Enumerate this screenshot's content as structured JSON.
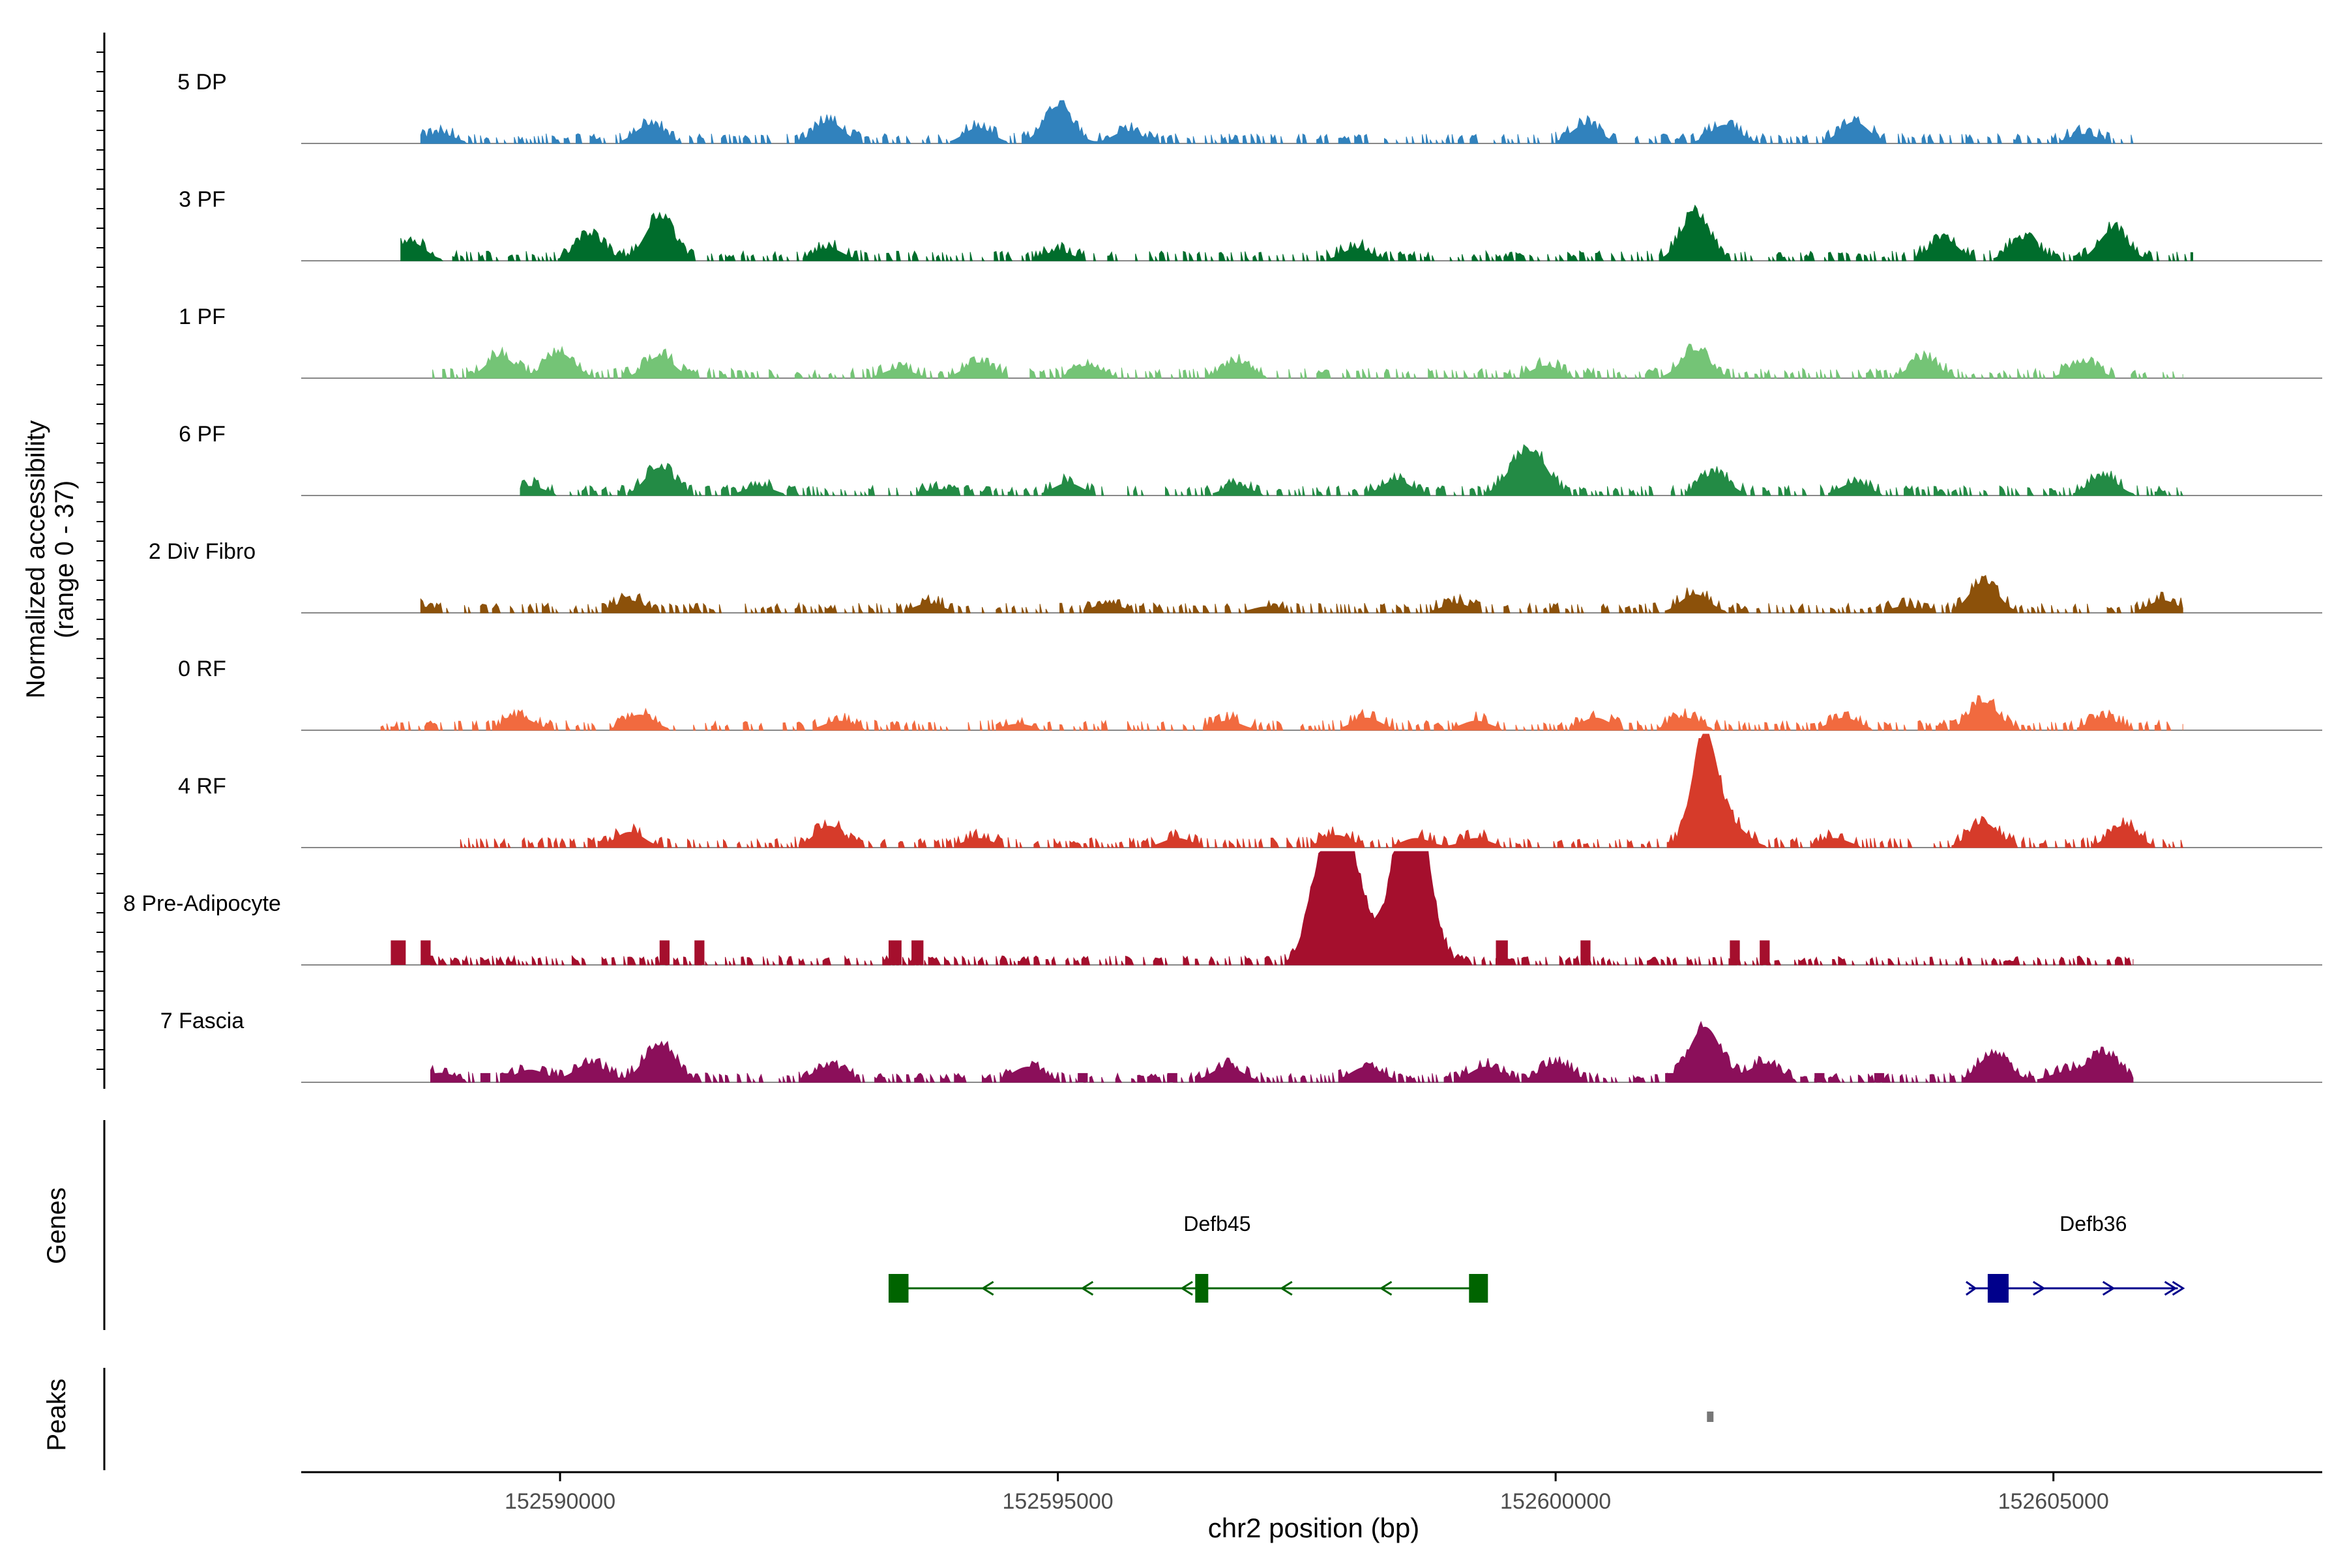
{
  "chart_data": {
    "type": "area",
    "title": "",
    "region": "chr2",
    "xlabel": "chr2 position (bp)",
    "ylabel": "Normalized accessibility",
    "ylabel_range": "(range 0 - 37)",
    "xlim": [
      152587400,
      152607700
    ],
    "ylim": [
      0,
      37
    ],
    "x_ticks": [
      152590000,
      152595000,
      152600000,
      152605000
    ],
    "x_tick_labels": [
      "152590000",
      "152595000",
      "152600000",
      "152605000"
    ],
    "track_labels": {
      "genes": "Genes",
      "peaks": "Peaks"
    },
    "series": [
      {
        "name": "5 DP",
        "color": "#3182bd",
        "x_start": 152588600,
        "x_end": 152605800,
        "peaks": [
          [
            152588800,
            3
          ],
          [
            152590900,
            6
          ],
          [
            152592700,
            7
          ],
          [
            152594200,
            5
          ],
          [
            152595000,
            12
          ],
          [
            152595700,
            4
          ],
          [
            152600300,
            6
          ],
          [
            152601700,
            6
          ],
          [
            152603000,
            7
          ],
          [
            152605300,
            3
          ]
        ]
      },
      {
        "name": "3 PF",
        "color": "#006d2c",
        "x_start": 152588400,
        "x_end": 152606400,
        "peaks": [
          [
            152588500,
            6
          ],
          [
            152590300,
            8
          ],
          [
            152591000,
            14
          ],
          [
            152592700,
            4
          ],
          [
            152595000,
            3
          ],
          [
            152598000,
            4
          ],
          [
            152601400,
            15
          ],
          [
            152603900,
            7
          ],
          [
            152604700,
            7
          ],
          [
            152605600,
            10
          ]
        ]
      },
      {
        "name": "1 PF",
        "color": "#74c476",
        "x_start": 152588700,
        "x_end": 152606300,
        "peaks": [
          [
            152589400,
            7
          ],
          [
            152590000,
            8
          ],
          [
            152591000,
            7
          ],
          [
            152593400,
            3
          ],
          [
            152594200,
            5
          ],
          [
            152595300,
            4
          ],
          [
            152596800,
            5
          ],
          [
            152599900,
            4
          ],
          [
            152601400,
            9
          ],
          [
            152603700,
            6
          ],
          [
            152605300,
            5
          ]
        ]
      },
      {
        "name": "6 PF",
        "color": "#238b45",
        "x_start": 152589600,
        "x_end": 152606300,
        "peaks": [
          [
            152589700,
            3
          ],
          [
            152591000,
            9
          ],
          [
            152592000,
            3
          ],
          [
            152593800,
            2
          ],
          [
            152595100,
            4
          ],
          [
            152596800,
            3
          ],
          [
            152598400,
            5
          ],
          [
            152599600,
            7
          ],
          [
            152599800,
            11
          ],
          [
            152601600,
            7
          ],
          [
            152603000,
            4
          ],
          [
            152605500,
            6
          ]
        ]
      },
      {
        "name": "2 Div Fibro",
        "color": "#8c510a",
        "x_start": 152588600,
        "x_end": 152606300,
        "peaks": [
          [
            152588600,
            2
          ],
          [
            152590700,
            4
          ],
          [
            152593700,
            3
          ],
          [
            152595500,
            3
          ],
          [
            152597100,
            2
          ],
          [
            152599000,
            3
          ],
          [
            152601400,
            6
          ],
          [
            152603500,
            2
          ],
          [
            152604300,
            10
          ],
          [
            152606100,
            4
          ]
        ]
      },
      {
        "name": "0 RF",
        "color": "#f16a3f",
        "x_start": 152588200,
        "x_end": 152606300,
        "peaks": [
          [
            152589600,
            4
          ],
          [
            152590800,
            5
          ],
          [
            152592800,
            3
          ],
          [
            152594600,
            2
          ],
          [
            152596700,
            3
          ],
          [
            152598100,
            4
          ],
          [
            152599200,
            3
          ],
          [
            152600400,
            4
          ],
          [
            152601300,
            4
          ],
          [
            152602900,
            4
          ],
          [
            152604300,
            9
          ],
          [
            152605500,
            4
          ]
        ]
      },
      {
        "name": "4 RF",
        "color": "#d63b2a",
        "x_start": 152589000,
        "x_end": 152606300,
        "peaks": [
          [
            152590700,
            5
          ],
          [
            152592700,
            7
          ],
          [
            152594200,
            3
          ],
          [
            152596200,
            3
          ],
          [
            152597800,
            4
          ],
          [
            152598600,
            3
          ],
          [
            152599200,
            3
          ],
          [
            152601500,
            37
          ],
          [
            152601800,
            6
          ],
          [
            152602800,
            3
          ],
          [
            152604300,
            8
          ],
          [
            152605700,
            7
          ]
        ]
      }
    ],
    "bar_tracks": [
      {
        "name": "8 Pre-Adipocyte",
        "color": "#a50f2d",
        "bars": [
          [
            152588300,
            152588450,
            8
          ],
          [
            152588600,
            152588700,
            8
          ],
          [
            152591000,
            152591100,
            8
          ],
          [
            152591350,
            152591450,
            8
          ],
          [
            152593300,
            152593430,
            8
          ],
          [
            152593530,
            152593650,
            8
          ],
          [
            152599400,
            152599520,
            8
          ],
          [
            152600250,
            152600350,
            8
          ],
          [
            152601750,
            152601850,
            8
          ],
          [
            152602050,
            152602150,
            8
          ]
        ],
        "peaks": [
          [
            152597700,
            37
          ],
          [
            152597950,
            28
          ],
          [
            152598500,
            37
          ],
          [
            152598600,
            30
          ]
        ]
      },
      {
        "name": "7 Fascia",
        "color": "#8b0f5a",
        "bars": [
          [
            152588700,
            152588800,
            3
          ],
          [
            152589200,
            152589300,
            3
          ],
          [
            152595200,
            152595300,
            3
          ],
          [
            152596100,
            152596200,
            3
          ],
          [
            152601100,
            152601200,
            3
          ],
          [
            152602600,
            152602700,
            3
          ],
          [
            152603200,
            152603300,
            3
          ]
        ],
        "peaks": [
          [
            152588800,
            3
          ],
          [
            152589700,
            4
          ],
          [
            152590300,
            6
          ],
          [
            152591000,
            12
          ],
          [
            152592700,
            5
          ],
          [
            152594700,
            5
          ],
          [
            152596700,
            5
          ],
          [
            152598100,
            5
          ],
          [
            152599300,
            5
          ],
          [
            152600000,
            6
          ],
          [
            152601500,
            18
          ],
          [
            152602100,
            6
          ],
          [
            152604400,
            9
          ],
          [
            152605500,
            9
          ],
          [
            152605100,
            3
          ]
        ]
      }
    ],
    "genes": [
      {
        "name": "Defb45",
        "color": "#006400",
        "strand": "-",
        "start": 152593300,
        "end": 152599300,
        "exons": [
          [
            152593300,
            152593500
          ],
          [
            152596380,
            152596510
          ],
          [
            152599130,
            152599320
          ]
        ]
      },
      {
        "name": "Defb36",
        "color": "#00008b",
        "strand": "+",
        "start": 152604150,
        "end": 152606250,
        "exons": [
          [
            152604340,
            152604550
          ]
        ]
      }
    ],
    "peaks_track": [
      [
        152601520,
        152601580
      ]
    ]
  }
}
